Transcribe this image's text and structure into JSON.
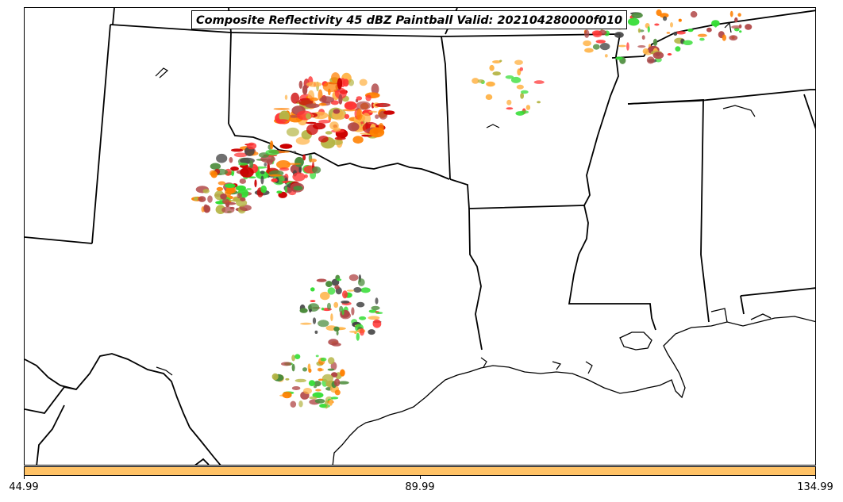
{
  "title": "Composite Reflectivity 45 dBZ Paintball Valid: 202104280000f010",
  "colorbar": {
    "fill_color": "#ffc266",
    "ticks": [
      "44.99",
      "89.99",
      "134.99"
    ]
  },
  "colors": {
    "member_red": "#ff3333",
    "member_darkred": "#cc0000",
    "member_orange": "#ff8000",
    "member_lightorange": "#ffb347",
    "member_brownred": "#b04646",
    "member_olive": "#b5b545",
    "member_green": "#33dd33",
    "member_darkgreen": "#4c8c3c",
    "member_darkgray": "#444444",
    "member_khaki": "#9a8c50"
  }
}
